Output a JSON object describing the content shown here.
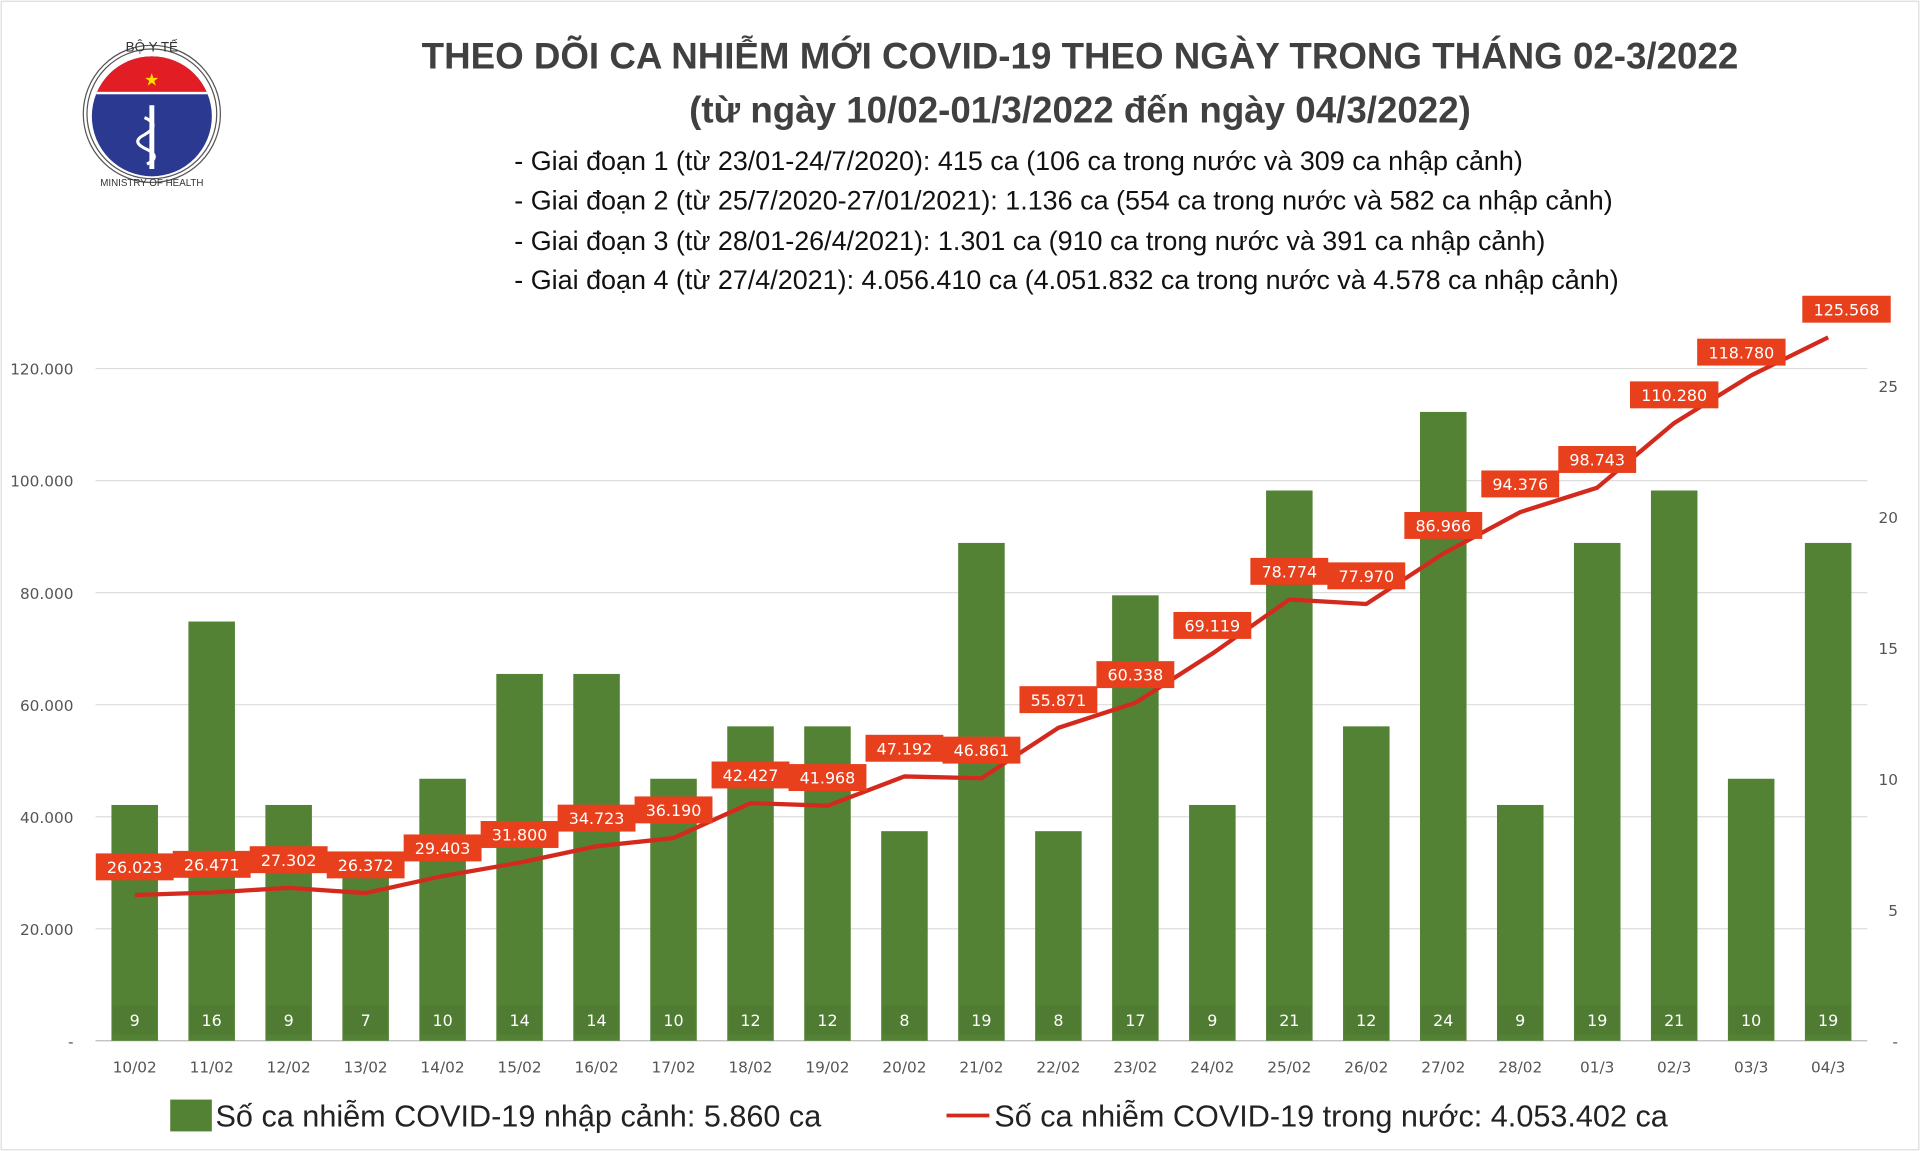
{
  "logo": {
    "top_text": "BỘ Y TẾ",
    "bottom_text": "MINISTRY OF HEALTH"
  },
  "header": {
    "title": "THEO DÕI CA NHIỄM MỚI COVID-19 THEO NGÀY TRONG THÁNG 02-3/2022",
    "subtitle": "(từ ngày 10/02-01/3/2022 đến ngày 04/3/2022)",
    "bullets": [
      "- Giai đoạn 1 (từ 23/01-24/7/2020): 415 ca (106 ca trong nước và 309 ca nhập cảnh)",
      "- Giai đoạn 2 (từ 25/7/2020-27/01/2021): 1.136 ca (554 ca trong nước và 582 ca nhập cảnh)",
      "- Giai đoạn 3 (từ 28/01-26/4/2021): 1.301 ca (910 ca trong nước và 391 ca nhập cảnh)",
      "- Giai đoạn 4 (từ 27/4/2021): 4.056.410 ca (4.051.832 ca trong nước và 4.578 ca nhập cảnh)"
    ]
  },
  "chart_data": {
    "type": "bar+line",
    "categories": [
      "10/02",
      "11/02",
      "12/02",
      "13/02",
      "14/02",
      "15/02",
      "16/02",
      "17/02",
      "18/02",
      "19/02",
      "20/02",
      "21/02",
      "22/02",
      "23/02",
      "24/02",
      "25/02",
      "26/02",
      "27/02",
      "28/02",
      "01/3",
      "02/3",
      "03/3",
      "04/3"
    ],
    "series": [
      {
        "name": "Số ca nhiễm COVID-19 nhập cảnh: 5.860 ca",
        "type": "bar",
        "axis": "right",
        "color": "#548235",
        "values": [
          9,
          16,
          9,
          7,
          10,
          14,
          14,
          10,
          12,
          12,
          8,
          19,
          8,
          17,
          9,
          21,
          12,
          24,
          9,
          19,
          21,
          10,
          19
        ],
        "labels": [
          "9",
          "16",
          "9",
          "7",
          "10",
          "14",
          "14",
          "10",
          "12",
          "12",
          "8",
          "19",
          "8",
          "17",
          "9",
          "21",
          "12",
          "24",
          "9",
          "19",
          "21",
          "10",
          "19"
        ]
      },
      {
        "name": "Số ca nhiễm COVID-19 trong nước: 4.053.402 ca",
        "type": "line",
        "axis": "left",
        "color": "#d42a1e",
        "values": [
          26023,
          26471,
          27302,
          26372,
          29403,
          31800,
          34723,
          36190,
          42427,
          41968,
          47192,
          46861,
          55871,
          60338,
          69119,
          78774,
          77970,
          86966,
          94376,
          98743,
          110280,
          118780,
          125568
        ],
        "labels": [
          "26.023",
          "26.471",
          "27.302",
          "26.372",
          "29.403",
          "31.800",
          "34.723",
          "36.190",
          "42.427",
          "41.968",
          "47.192",
          "46.861",
          "55.871",
          "60.338",
          "69.119",
          "78.774",
          "77.970",
          "86.966",
          "94.376",
          "98.743",
          "110.280",
          "118.780",
          "125.568"
        ]
      }
    ],
    "left_axis": {
      "ticks": [
        "-",
        "20.000",
        "40.000",
        "60.000",
        "80.000",
        "100.000",
        "120.000"
      ],
      "tick_values": [
        0,
        20000,
        40000,
        60000,
        80000,
        100000,
        120000
      ]
    },
    "right_axis": {
      "ticks": [
        "-",
        "5",
        "10",
        "15",
        "20",
        "25"
      ],
      "tick_values": [
        0,
        5,
        10,
        15,
        20,
        25
      ]
    },
    "grid": true,
    "legend_placement": "bottom",
    "label_color": "#e8401c"
  }
}
